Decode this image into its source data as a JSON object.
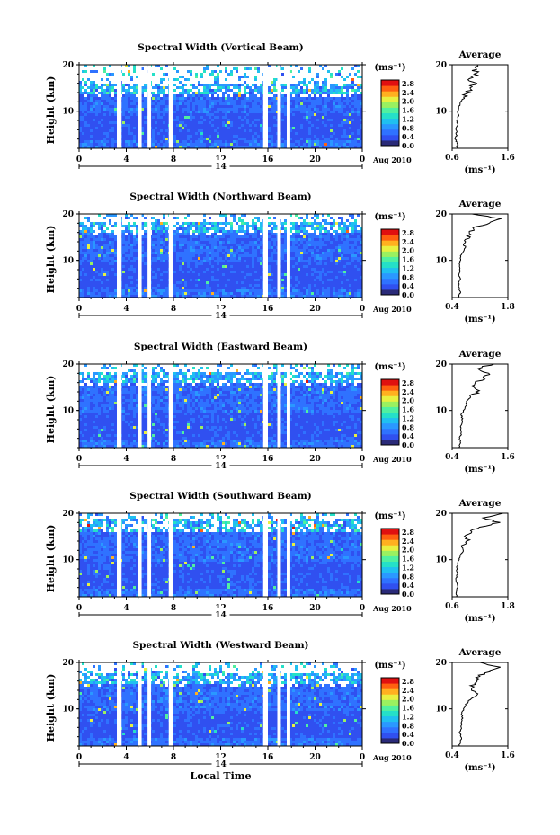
{
  "colormap": [
    "#2a2a78",
    "#3050f0",
    "#2f72ff",
    "#2a98ff",
    "#20c0f0",
    "#25e0c8",
    "#50f0a0",
    "#9af060",
    "#e8f040",
    "#ffb020",
    "#ff6010",
    "#e01010"
  ],
  "chart_data": [
    {
      "type": "heatmap",
      "title": "Spectral Width (Vertical Beam)",
      "ylabel": "Height (km)",
      "xlabel": "",
      "date_label": "Aug 2010",
      "mid_day_label": "14",
      "xticks": [
        "0",
        "4",
        "8",
        "12",
        "16",
        "20",
        "0"
      ],
      "xlim": [
        0,
        24
      ],
      "ylim": [
        2,
        20
      ],
      "yticks": [
        "10",
        "20"
      ],
      "colorbar": {
        "unit": "(ms⁻¹)",
        "labels": [
          "2.8",
          "2.4",
          "2.0",
          "1.6",
          "1.2",
          "0.8",
          "0.4",
          "0.0"
        ],
        "range": [
          0,
          2.8
        ]
      },
      "gaps_hours": [
        [
          3.2,
          3.6
        ],
        [
          5.0,
          5.3
        ],
        [
          5.8,
          6.1
        ],
        [
          7.6,
          8.0
        ],
        [
          15.6,
          16.0
        ],
        [
          16.8,
          17.1
        ],
        [
          17.6,
          17.9
        ]
      ],
      "data_top_km": 16.5,
      "profile": {
        "title": "Average",
        "xlabel": "(ms⁻¹)",
        "xlim": [
          0.6,
          1.6
        ],
        "xticks": [
          "0.6",
          "1.6"
        ],
        "yticks": [
          "10",
          "20"
        ],
        "height_km": [
          2,
          3,
          4,
          5,
          6,
          7,
          8,
          9,
          10,
          11,
          12,
          13,
          14,
          15,
          16,
          17,
          18,
          19,
          20
        ],
        "width": [
          0.68,
          0.7,
          0.66,
          0.68,
          0.67,
          0.7,
          0.69,
          0.71,
          0.7,
          0.72,
          0.76,
          0.82,
          0.88,
          0.95,
          1.0,
          0.92,
          1.05,
          0.98,
          1.05
        ]
      }
    },
    {
      "type": "heatmap",
      "title": "Spectral Width (Northward Beam)",
      "ylabel": "Height (km)",
      "xlabel": "",
      "date_label": "Aug 2010",
      "mid_day_label": "14",
      "xticks": [
        "0",
        "4",
        "8",
        "12",
        "16",
        "20",
        "0"
      ],
      "xlim": [
        0,
        24
      ],
      "ylim": [
        2,
        20
      ],
      "yticks": [
        "10",
        "20"
      ],
      "colorbar": {
        "unit": "(ms⁻¹)",
        "labels": [
          "2.8",
          "2.4",
          "2.0",
          "1.6",
          "1.2",
          "0.8",
          "0.4",
          "0.0"
        ],
        "range": [
          0,
          2.8
        ]
      },
      "gaps_hours": [
        [
          3.2,
          3.6
        ],
        [
          5.0,
          5.3
        ],
        [
          5.8,
          6.1
        ],
        [
          7.6,
          8.0
        ],
        [
          15.6,
          16.0
        ],
        [
          16.8,
          17.1
        ],
        [
          17.6,
          17.9
        ]
      ],
      "data_top_km": 18.8,
      "profile": {
        "title": "Average",
        "xlabel": "(ms⁻¹)",
        "xlim": [
          0.4,
          1.8
        ],
        "xticks": [
          "0.4",
          "1.8"
        ],
        "yticks": [
          "10",
          "20"
        ],
        "height_km": [
          2,
          3,
          4,
          5,
          6,
          7,
          8,
          9,
          10,
          11,
          12,
          13,
          14,
          15,
          16,
          17,
          18,
          19,
          20
        ],
        "width": [
          0.55,
          0.6,
          0.58,
          0.56,
          0.6,
          0.57,
          0.6,
          0.58,
          0.6,
          0.62,
          0.68,
          0.75,
          0.7,
          0.8,
          0.85,
          0.95,
          1.3,
          1.6,
          0.9
        ]
      }
    },
    {
      "type": "heatmap",
      "title": "Spectral Width (Eastward Beam)",
      "ylabel": "Height (km)",
      "xlabel": "",
      "date_label": "Aug 2010",
      "mid_day_label": "14",
      "xticks": [
        "0",
        "4",
        "8",
        "12",
        "16",
        "20",
        "0"
      ],
      "xlim": [
        0,
        24
      ],
      "ylim": [
        2,
        20
      ],
      "yticks": [
        "10",
        "20"
      ],
      "colorbar": {
        "unit": "(ms⁻¹)",
        "labels": [
          "2.8",
          "2.4",
          "2.0",
          "1.6",
          "1.2",
          "0.8",
          "0.4",
          "0.0"
        ],
        "range": [
          0,
          2.8
        ]
      },
      "gaps_hours": [
        [
          3.2,
          3.6
        ],
        [
          5.0,
          5.3
        ],
        [
          5.8,
          6.1
        ],
        [
          7.6,
          8.0
        ],
        [
          15.6,
          16.0
        ],
        [
          16.8,
          17.1
        ],
        [
          17.6,
          17.9
        ]
      ],
      "data_top_km": 18.5,
      "profile": {
        "title": "Average",
        "xlabel": "(ms⁻¹)",
        "xlim": [
          0.4,
          1.6
        ],
        "xticks": [
          "0.4",
          "1.6"
        ],
        "yticks": [
          "10",
          "20"
        ],
        "height_km": [
          2,
          3,
          4,
          5,
          6,
          7,
          8,
          9,
          10,
          11,
          12,
          13,
          14,
          15,
          16,
          17,
          18,
          19,
          20
        ],
        "width": [
          0.55,
          0.58,
          0.56,
          0.6,
          0.58,
          0.6,
          0.62,
          0.6,
          0.64,
          0.7,
          0.72,
          0.8,
          0.95,
          0.85,
          0.9,
          1.1,
          1.2,
          0.9,
          1.3
        ]
      }
    },
    {
      "type": "heatmap",
      "title": "Spectral Width (Southward Beam)",
      "ylabel": "Height (km)",
      "xlabel": "",
      "date_label": "Aug 2010",
      "mid_day_label": "14",
      "xticks": [
        "0",
        "4",
        "8",
        "12",
        "16",
        "20",
        "0"
      ],
      "xlim": [
        0,
        24
      ],
      "ylim": [
        2,
        20
      ],
      "yticks": [
        "10",
        "20"
      ],
      "colorbar": {
        "unit": "(ms⁻¹)",
        "labels": [
          "2.8",
          "2.4",
          "2.0",
          "1.6",
          "1.2",
          "0.8",
          "0.4",
          "0.0"
        ],
        "range": [
          0,
          2.8
        ]
      },
      "gaps_hours": [
        [
          3.2,
          3.6
        ],
        [
          5.0,
          5.3
        ],
        [
          5.8,
          6.1
        ],
        [
          7.6,
          8.0
        ],
        [
          15.6,
          16.0
        ],
        [
          16.8,
          17.1
        ],
        [
          17.6,
          17.9
        ]
      ],
      "data_top_km": 19.0,
      "profile": {
        "title": "Average",
        "xlabel": "(ms⁻¹)",
        "xlim": [
          0.6,
          1.8
        ],
        "xticks": [
          "0.6",
          "1.8"
        ],
        "yticks": [
          "10",
          "20"
        ],
        "height_km": [
          2,
          3,
          4,
          5,
          6,
          7,
          8,
          9,
          10,
          11,
          12,
          13,
          14,
          15,
          16,
          17,
          18,
          19,
          20
        ],
        "width": [
          0.7,
          0.68,
          0.72,
          0.7,
          0.69,
          0.71,
          0.7,
          0.72,
          0.74,
          0.78,
          0.85,
          0.8,
          0.95,
          0.9,
          1.0,
          1.2,
          1.6,
          1.3,
          1.7
        ]
      }
    },
    {
      "type": "heatmap",
      "title": "Spectral Width (Westward Beam)",
      "ylabel": "Height (km)",
      "xlabel": "Local Time",
      "date_label": "Aug 2010",
      "mid_day_label": "14",
      "xticks": [
        "0",
        "4",
        "8",
        "12",
        "16",
        "20",
        "0"
      ],
      "xlim": [
        0,
        24
      ],
      "ylim": [
        2,
        20
      ],
      "yticks": [
        "10",
        "20"
      ],
      "colorbar": {
        "unit": "(ms⁻¹)",
        "labels": [
          "2.8",
          "2.4",
          "2.0",
          "1.6",
          "1.2",
          "0.8",
          "0.4",
          "0.0"
        ],
        "range": [
          0,
          2.8
        ]
      },
      "gaps_hours": [
        [
          3.2,
          3.6
        ],
        [
          5.0,
          5.3
        ],
        [
          5.8,
          6.1
        ],
        [
          7.6,
          8.0
        ],
        [
          15.6,
          16.0
        ],
        [
          16.8,
          17.1
        ],
        [
          17.6,
          17.9
        ]
      ],
      "data_top_km": 18.0,
      "profile": {
        "title": "Average",
        "xlabel": "(ms⁻¹)",
        "xlim": [
          0.4,
          1.6
        ],
        "xticks": [
          "0.4",
          "1.6"
        ],
        "yticks": [
          "10",
          "20"
        ],
        "height_km": [
          2,
          3,
          4,
          5,
          6,
          7,
          8,
          9,
          10,
          11,
          12,
          13,
          14,
          15,
          16,
          17,
          18,
          19,
          20
        ],
        "width": [
          0.55,
          0.58,
          0.6,
          0.57,
          0.6,
          0.6,
          0.62,
          0.6,
          0.65,
          0.7,
          0.78,
          0.95,
          0.8,
          0.85,
          0.9,
          0.95,
          1.2,
          1.4,
          1.0
        ]
      }
    }
  ]
}
